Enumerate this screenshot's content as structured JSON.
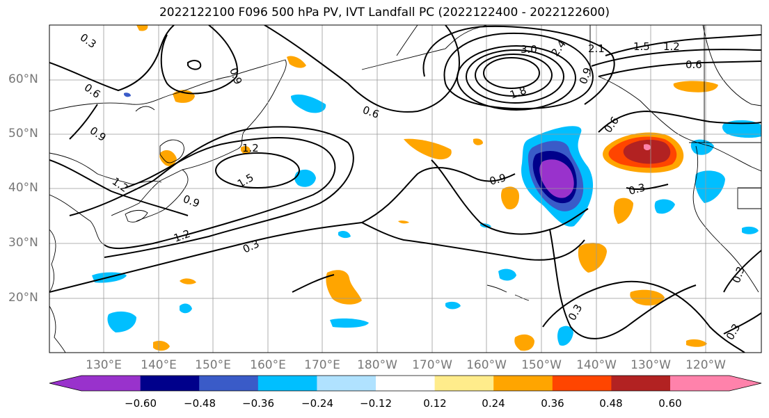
{
  "title": "2022122100 F096 500 hPa PV, IVT Landfall PC (2022122400 - 2022122600)",
  "lat_labels": [
    "60°N",
    "50°N",
    "40°N",
    "30°N",
    "20°N"
  ],
  "lon_labels": [
    "130°E",
    "140°E",
    "150°E",
    "160°E",
    "170°E",
    "180°W",
    "170°W",
    "160°W",
    "150°W",
    "140°W",
    "130°W",
    "120°W"
  ],
  "colorbar": {
    "colors": [
      "#9932CC",
      "#00008B",
      "#3A5BC8",
      "#00BFFF",
      "#B0E2FF",
      "#FFFFFF",
      "#FFEC8B",
      "#FFA500",
      "#FF4500",
      "#B22222",
      "#FF82AB"
    ],
    "ticks": [
      "−0.60",
      "−0.48",
      "−0.36",
      "−0.24",
      "−0.12",
      "0.12",
      "0.24",
      "0.36",
      "0.48",
      "0.60"
    ]
  },
  "contour_labels": [
    "0.3",
    "0.6",
    "0.9",
    "1.2",
    "1.5",
    "1.8",
    "2.1",
    "2.4",
    "3.0"
  ],
  "colors": {
    "contour": "#000000",
    "grid": "#999999",
    "axis_label": "#777777"
  }
}
